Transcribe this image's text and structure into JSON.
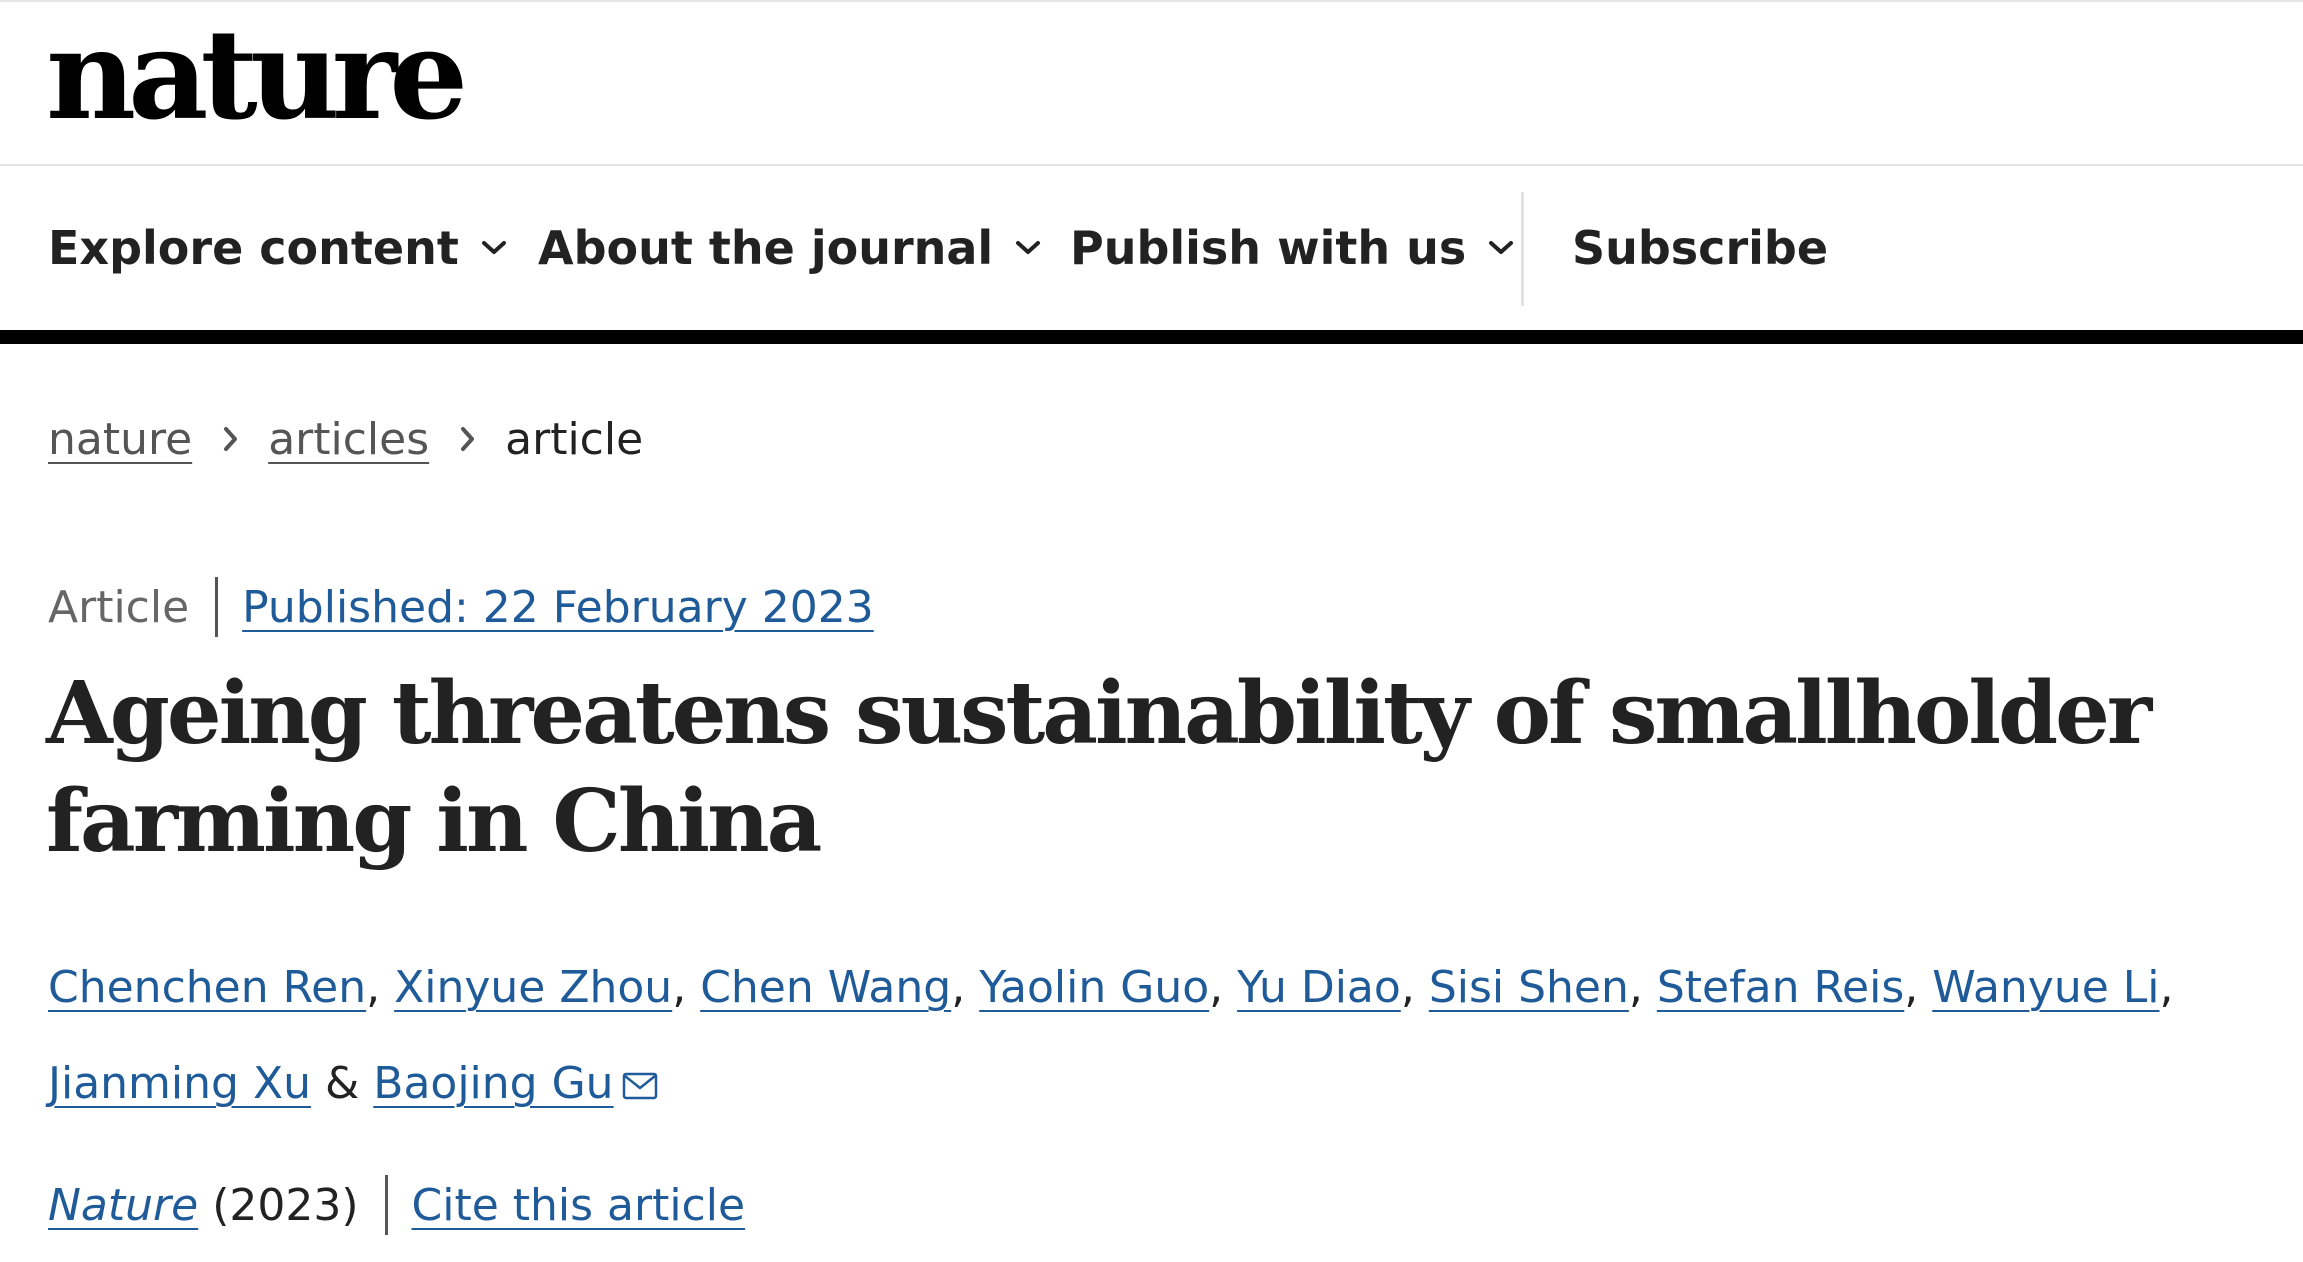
{
  "header": {
    "logo_text": "nature",
    "nav": {
      "explore_label": "Explore content",
      "about_label": "About the journal",
      "publish_label": "Publish with us",
      "subscribe_label": "Subscribe"
    }
  },
  "breadcrumb": {
    "items": [
      "nature",
      "articles",
      "article"
    ]
  },
  "article": {
    "type": "Article",
    "published": "Published: 22 February 2023",
    "title": "Ageing threatens sustainability of smallholder farming in China",
    "authors": [
      "Chenchen Ren",
      "Xinyue Zhou",
      "Chen Wang",
      "Yaolin Guo",
      "Yu Diao",
      "Sisi Shen",
      "Stefan Reis",
      "Wanyue Li",
      "Jianming Xu",
      "Baojing Gu"
    ],
    "author_separator": ", ",
    "author_last_separator": " & ",
    "journal": "Nature",
    "year": "(2023)",
    "cite_label": "Cite this article"
  },
  "icons": {
    "chevron": "chevron-down-icon",
    "crumb": "chevron-right-icon",
    "mail": "envelope-icon"
  },
  "colors": {
    "link": "#1f5a99",
    "text": "#222222",
    "muted": "#666666"
  }
}
